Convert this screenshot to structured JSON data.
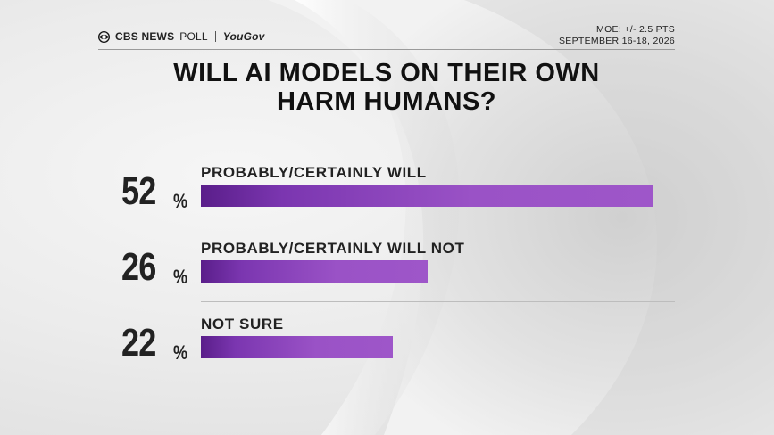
{
  "header": {
    "brand_name": "CBS NEWS",
    "brand_poll": "POLL",
    "partner": "YouGov",
    "moe": "MOE: +/- 2.5 PTS",
    "dates": "SEPTEMBER 16-18, 2026"
  },
  "title_line1": "WILL AI MODELS ON THEIR OWN",
  "title_line2": "HARM HUMANS?",
  "colors": {
    "bar": "#9a52c6",
    "bar_dark": "#5a1e8a",
    "text": "#222222"
  },
  "chart_data": {
    "type": "bar",
    "orientation": "horizontal",
    "title": "WILL AI MODELS ON THEIR OWN HARM HUMANS?",
    "categories": [
      "PROBABLY/CERTAINLY WILL",
      "PROBABLY/CERTAINLY WILL NOT",
      "NOT SURE"
    ],
    "values": [
      52,
      26,
      22
    ],
    "value_labels": [
      "52",
      "26",
      "22"
    ],
    "value_suffix": "%",
    "xlim": [
      0,
      52
    ],
    "grid": false,
    "legend": "none"
  }
}
